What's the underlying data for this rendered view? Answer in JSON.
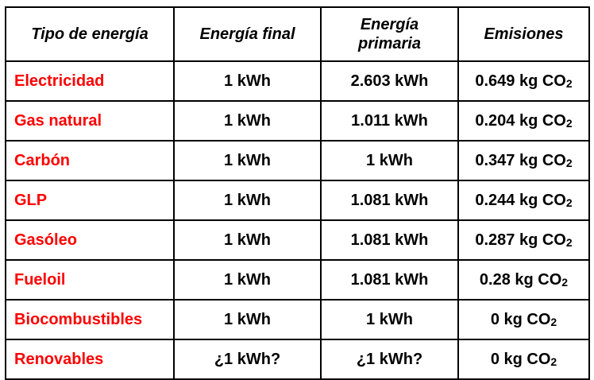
{
  "headers": {
    "type": "Tipo de energía",
    "final": "Energía final",
    "primary": "Energía primaria",
    "emissions": "Emisiones"
  },
  "rows": [
    {
      "type": "Electricidad",
      "final": "1 kWh",
      "primary": "2.603 kWh",
      "emissions": "0.649 kg CO",
      "sub": "2"
    },
    {
      "type": "Gas natural",
      "final": "1 kWh",
      "primary": "1.011 kWh",
      "emissions": "0.204 kg CO",
      "sub": "2"
    },
    {
      "type": "Carbón",
      "final": "1 kWh",
      "primary": "1 kWh",
      "emissions": "0.347 kg CO",
      "sub": "2"
    },
    {
      "type": "GLP",
      "final": "1 kWh",
      "primary": "1.081 kWh",
      "emissions": "0.244 kg CO",
      "sub": "2"
    },
    {
      "type": "Gasóleo",
      "final": "1 kWh",
      "primary": "1.081 kWh",
      "emissions": "0.287 kg CO",
      "sub": "2"
    },
    {
      "type": "Fueloil",
      "final": "1 kWh",
      "primary": "1.081 kWh",
      "emissions": "0.28 kg CO",
      "sub": "2"
    },
    {
      "type": "Biocombustibles",
      "final": "1 kWh",
      "primary": "1 kWh",
      "emissions": "0 kg CO",
      "sub": "2"
    },
    {
      "type": "Renovables",
      "final": "¿1 kWh?",
      "primary": "¿1 kWh?",
      "emissions": "0 kg CO",
      "sub": "2"
    }
  ],
  "colors": {
    "type_text": "#ff0000",
    "text": "#000000",
    "border": "#000000",
    "background": "#ffffff"
  }
}
